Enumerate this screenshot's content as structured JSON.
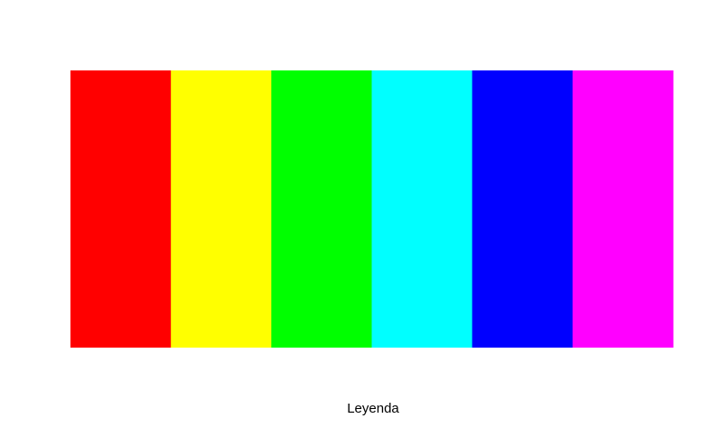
{
  "chart_data": {
    "type": "bar",
    "categories": [
      "",
      "",
      "",
      "",
      "",
      ""
    ],
    "values": [
      1,
      1,
      1,
      1,
      1,
      1
    ],
    "colors": [
      "#ff0000",
      "#ffff00",
      "#00ff00",
      "#00ffff",
      "#0000ff",
      "#ff00ff"
    ],
    "title": "",
    "xlabel": "Leyenda",
    "ylabel": "",
    "ylim": [
      0,
      1
    ],
    "grid": false,
    "axes_visible": false
  }
}
